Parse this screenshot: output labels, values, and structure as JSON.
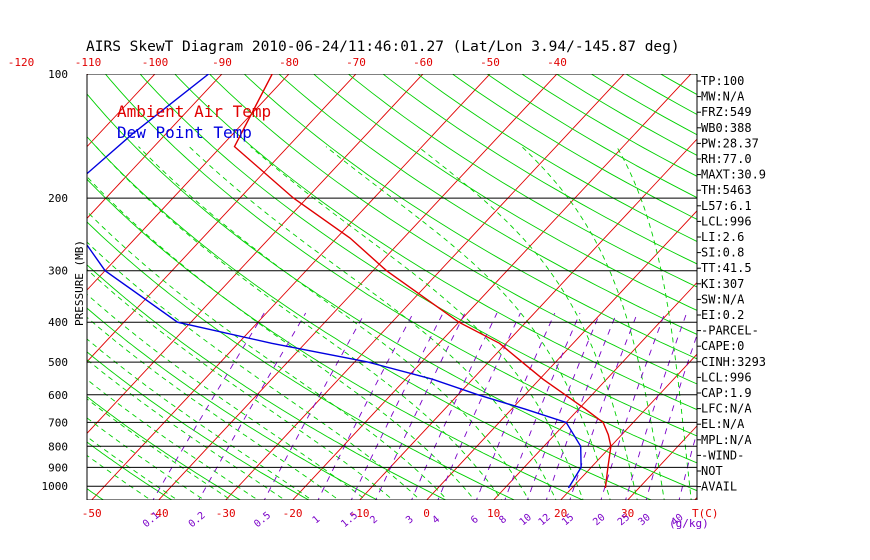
{
  "chart_data": {
    "type": "skewt",
    "title": "AIRS SkewT Diagram 2010-06-24/11:46:01.27 (Lat/Lon 3.94/-145.87 deg)",
    "ylabel": "PRESSURE (MB)",
    "xlabel_bottom": "T(C)",
    "mixing_ratio_label": "(g/kg)",
    "legend": [
      {
        "name": "Ambient Air Temp",
        "color": "#e00000"
      },
      {
        "name": "Dew Point Temp",
        "color": "#0000e0"
      }
    ],
    "pressure_ticks": [
      "100",
      "200",
      "300",
      "400",
      "500",
      "600",
      "700",
      "800",
      "900",
      "1000"
    ],
    "pressure_values": [
      100,
      200,
      300,
      400,
      500,
      600,
      700,
      800,
      900,
      1000
    ],
    "top_temp_ticks": [
      -120,
      -110,
      -100,
      -90,
      -80,
      -70,
      -60,
      -50,
      -40
    ],
    "bottom_temp_ticks": [
      -50,
      -40,
      -30,
      -20,
      -10,
      0,
      10,
      20,
      30
    ],
    "mixing_ratio_ticks": [
      "0.1",
      "0.2",
      "0.5",
      "1",
      "1.5",
      "2",
      "3",
      "4",
      "6",
      "8",
      "10",
      "12",
      "15",
      "20",
      "25",
      "30",
      "40"
    ],
    "series": [
      {
        "name": "Ambient Air Temp",
        "color": "#e00000",
        "points": [
          [
            100,
            -82.5
          ],
          [
            150,
            -78.0
          ],
          [
            200,
            -62.0
          ],
          [
            250,
            -48.0
          ],
          [
            300,
            -38.0
          ],
          [
            400,
            -20.0
          ],
          [
            450,
            -11.0
          ],
          [
            500,
            -5.0
          ],
          [
            550,
            0.5
          ],
          [
            600,
            6.0
          ],
          [
            650,
            11.0
          ],
          [
            700,
            15.5
          ],
          [
            750,
            18.0
          ],
          [
            800,
            20.0
          ],
          [
            900,
            22.5
          ],
          [
            1010,
            25.0
          ]
        ]
      },
      {
        "name": "Dew Point Temp",
        "color": "#0000e0",
        "points": [
          [
            100,
            -92.0
          ],
          [
            140,
            -95.0
          ],
          [
            200,
            -97.0
          ],
          [
            250,
            -88.0
          ],
          [
            300,
            -80.0
          ],
          [
            400,
            -62.0
          ],
          [
            450,
            -45.0
          ],
          [
            500,
            -28.0
          ],
          [
            550,
            -16.0
          ],
          [
            600,
            -7.0
          ],
          [
            650,
            2.0
          ],
          [
            700,
            10.0
          ],
          [
            800,
            15.5
          ],
          [
            900,
            18.5
          ],
          [
            1010,
            19.5
          ]
        ]
      }
    ]
  },
  "indices": [
    "TP:100",
    "MW:N/A",
    "FRZ:549",
    "WB0:388",
    "PW:28.37",
    "RH:77.0",
    "MAXT:30.9",
    "TH:5463",
    "L57:6.1",
    "LCL:996",
    "LI:2.6",
    "SI:0.8",
    "TT:41.5",
    "KI:307",
    "SW:N/A",
    "EI:0.2",
    "-PARCEL-",
    "CAPE:0",
    "CINH:3293",
    "LCL:996",
    "CAP:1.9",
    "LFC:N/A",
    "EL:N/A",
    "MPL:N/A",
    "-WIND-",
    "NOT",
    "AVAIL"
  ],
  "colors": {
    "isotherm": "#e00000",
    "dry_adiabat": "#00d000",
    "moist_adiabat": "#00d000",
    "mixing_ratio": "#7a00c8",
    "isobar": "#000000",
    "temperature": "#e00000",
    "dewpoint": "#0000e0"
  }
}
